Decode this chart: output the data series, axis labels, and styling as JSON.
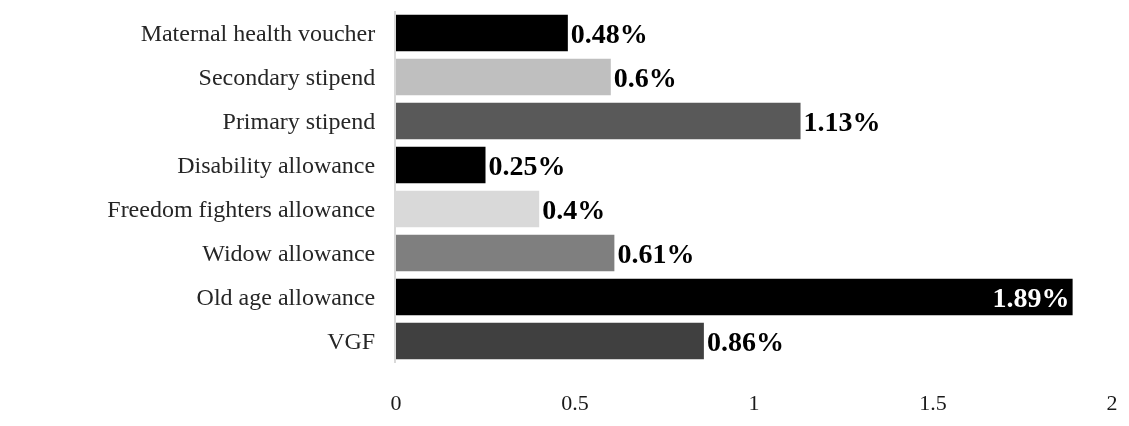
{
  "chart_data": {
    "type": "bar",
    "orientation": "horizontal",
    "categories": [
      "Maternal health voucher",
      "Secondary stipend",
      "Primary stipend",
      "Disability allowance",
      "Freedom fighters allowance",
      "Widow allowance",
      "Old age allowance",
      "VGF"
    ],
    "values": [
      0.48,
      0.6,
      1.13,
      0.25,
      0.4,
      0.61,
      1.89,
      0.86
    ],
    "colors": [
      "#000000",
      "#bfbfbf",
      "#595959",
      "#000000",
      "#d9d9d9",
      "#7f7f7f",
      "#000000",
      "#404040"
    ],
    "value_labels": [
      "0.48%",
      "0.6%",
      "1.13%",
      "0.25%",
      "0.4%",
      "0.61%",
      "1.89%",
      "0.86%"
    ],
    "xlim": [
      0,
      2
    ],
    "xticks": [
      0,
      0.5,
      1,
      1.5,
      2
    ]
  }
}
